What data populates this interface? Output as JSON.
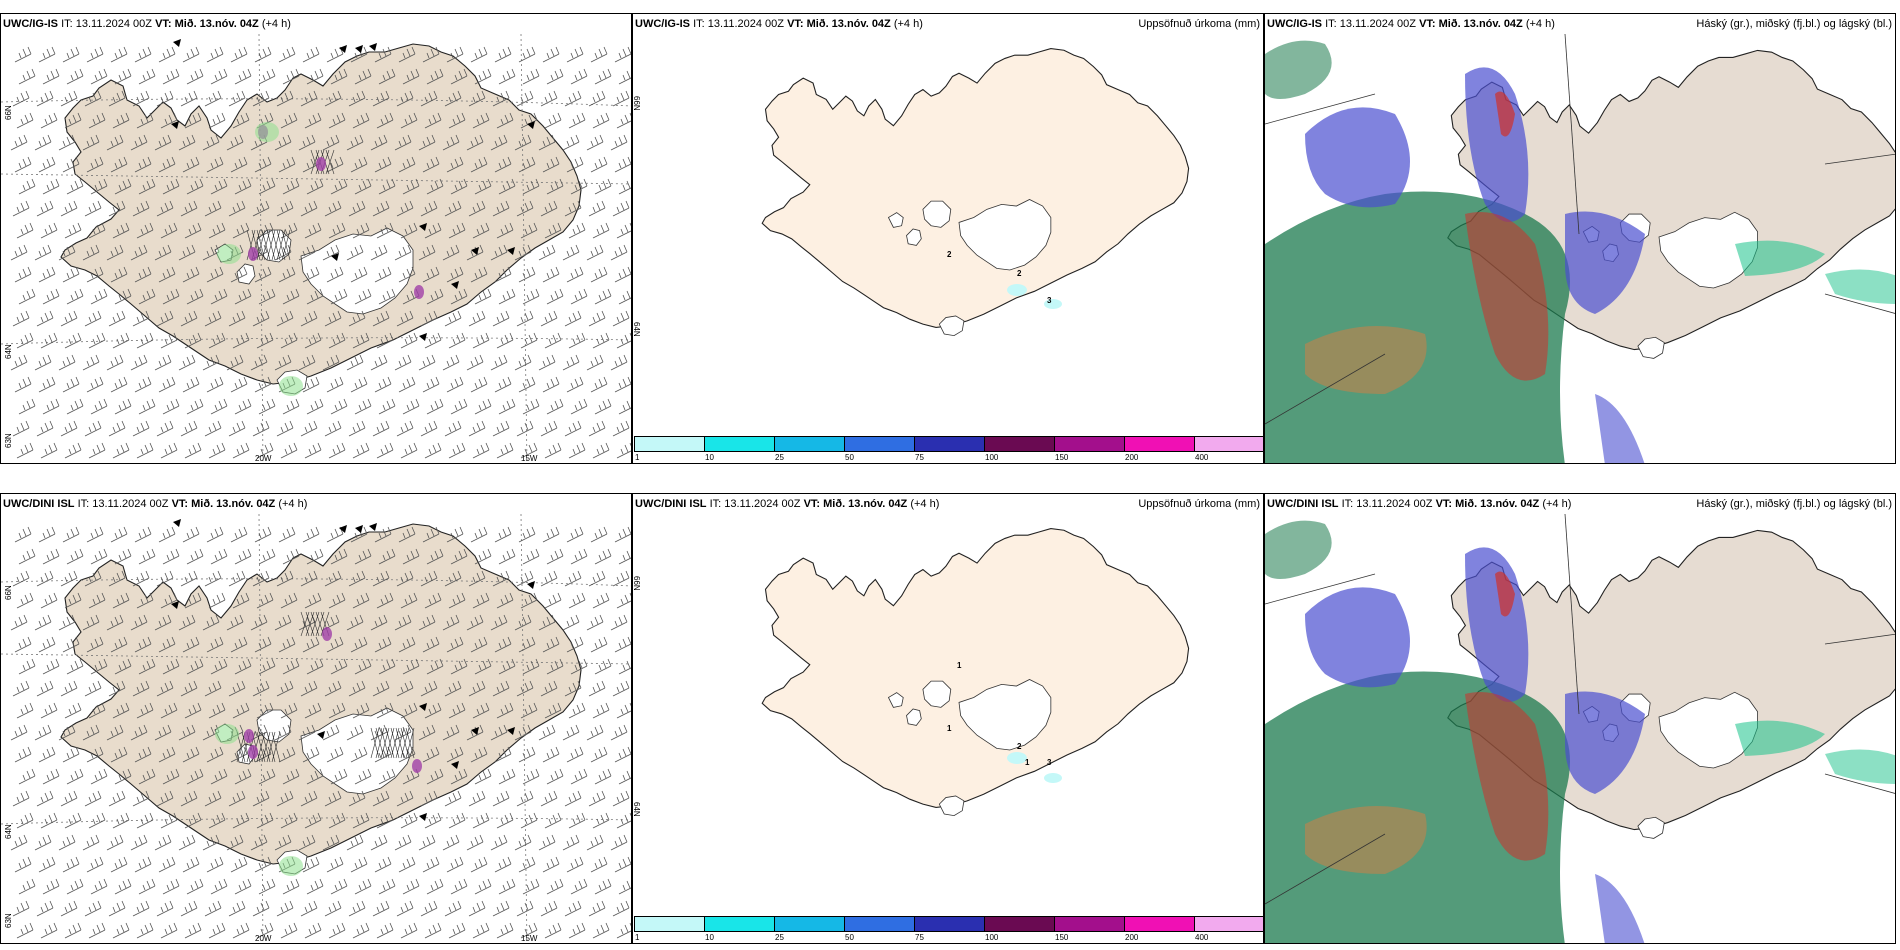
{
  "rows": [
    {
      "model": "UWC/IG-IS",
      "it_label": "IT:",
      "it": "13.11.2024 00Z",
      "vt_label": "VT:",
      "vt": "Mið. 13.nóv. 04Z",
      "lead": "(+4 h)",
      "wind_lat_labels": [
        "66N",
        "64N",
        "63N"
      ],
      "wind_lon_labels": [
        "20W",
        "15W"
      ],
      "precip_lat_labels": [
        "66N",
        "64N"
      ],
      "precip_contour_labels": [
        "2",
        "2",
        "3"
      ]
    },
    {
      "model": "UWC/DINI ISL",
      "it_label": "IT:",
      "it": "13.11.2024 00Z",
      "vt_label": "VT:",
      "vt": "Mið. 13.nóv. 04Z",
      "lead": "(+4 h)",
      "wind_lat_labels": [
        "66N",
        "64N",
        "63N"
      ],
      "wind_lon_labels": [
        "20W",
        "15W"
      ],
      "precip_lat_labels": [
        "66N",
        "64N"
      ],
      "precip_contour_labels": [
        "1",
        "1",
        "2",
        "1",
        "3"
      ]
    }
  ],
  "precip_title": "Uppsöfnuð úrkoma (mm)",
  "cloud_title": "Háský (gr.), miðský (fj.bl.) og lágský (bl.)",
  "colorbar": {
    "ticks": [
      "1",
      "10",
      "25",
      "50",
      "75",
      "100",
      "150",
      "200",
      "400"
    ],
    "colors": [
      "#c4f8f8",
      "#19e5e8",
      "#15b8e6",
      "#2f6ee2",
      "#2a2fb0",
      "#6a0a52",
      "#a30f8c",
      "#f010b4",
      "#f2aaee"
    ]
  },
  "colors": {
    "land_wind": "#e8dccc",
    "land_precip": "#fdf0e2",
    "land_cloud": "#e6dcd2",
    "low_cloud": "#1b7a4d",
    "mid_cloud": "#4a4ed0",
    "high_cloud": "#d0302a"
  }
}
